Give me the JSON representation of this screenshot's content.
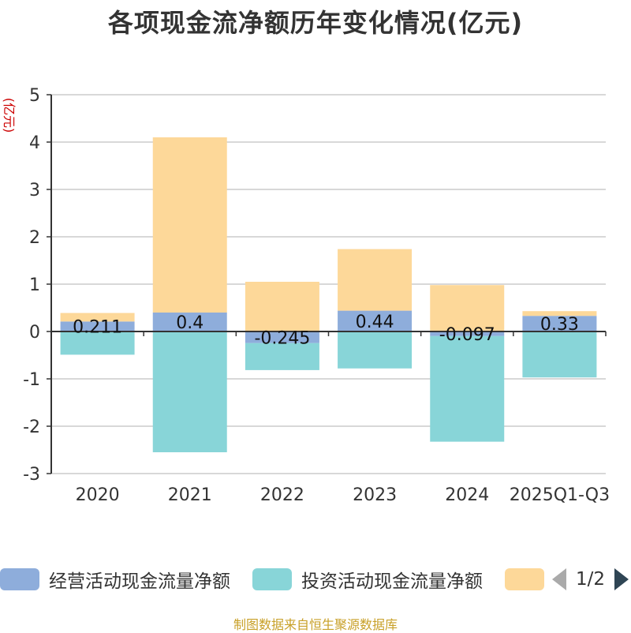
{
  "chart_data": {
    "type": "bar",
    "stacked": true,
    "title": "各项现金流净额历年变化情况(亿元)",
    "ylabel": "(亿元)",
    "xlabel": "",
    "categories": [
      "2020",
      "2021",
      "2022",
      "2023",
      "2024",
      "2025Q1-Q3"
    ],
    "ylim": [
      -3,
      5
    ],
    "yticks": [
      -3,
      -2,
      -1,
      0,
      1,
      2,
      3,
      4,
      5
    ],
    "series": [
      {
        "name": "经营活动现金流量净额",
        "color": "#8eaddb",
        "values": [
          0.211,
          0.4,
          -0.245,
          0.44,
          -0.097,
          0.33
        ],
        "labels": [
          "0.211",
          "0.4",
          "-0.245",
          "0.44",
          "-0.097",
          "0.33"
        ]
      },
      {
        "name": "投资活动现金流量净额",
        "color": "#88d5d8",
        "values": [
          -0.49,
          -2.55,
          -0.57,
          -0.78,
          -2.23,
          -0.97
        ]
      },
      {
        "name": "",
        "color": "#fdd899",
        "values": [
          0.18,
          3.7,
          1.05,
          1.3,
          0.98,
          0.1
        ]
      }
    ],
    "legend_position": "bottom"
  },
  "legend": {
    "page_text": "1/2"
  },
  "source": "制图数据来自恒生聚源数据库"
}
